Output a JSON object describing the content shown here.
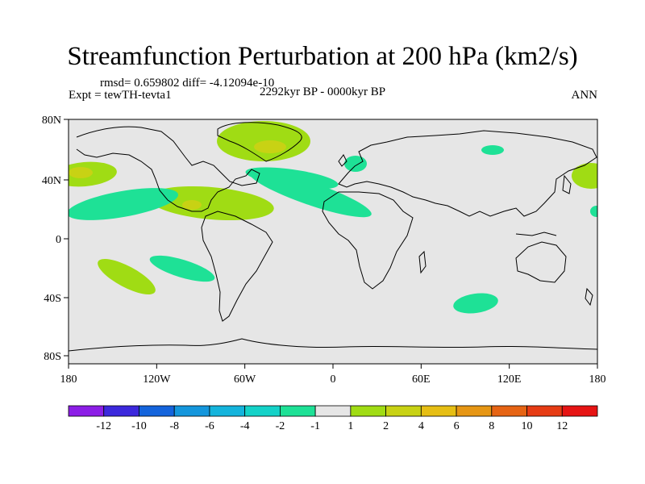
{
  "title": "Streamfunction Perturbation at 200 hPa (km2/s)",
  "rmsd_line": "rmsd= 0.659802 diff= -4.12094e-10",
  "experiment": "Expt = tewTH-tevta1",
  "period": "2292kyr BP - 0000kyr BP",
  "season": "ANN",
  "y_ticks": [
    "80N",
    "40N",
    "0",
    "40S",
    "80S"
  ],
  "x_ticks": [
    "180",
    "120W",
    "60W",
    "0",
    "60E",
    "120E",
    "180"
  ],
  "colorbar": {
    "colors": [
      "#8c1ee6",
      "#3c28dc",
      "#1464dc",
      "#1496dc",
      "#14b4dc",
      "#14d2c8",
      "#1ee196",
      "#e6e6e6",
      "#a0dc14",
      "#c8d214",
      "#e6be14",
      "#e69614",
      "#e66414",
      "#e63c14",
      "#e61414"
    ],
    "labels": [
      "-12",
      "-10",
      "-8",
      "-6",
      "-4",
      "-2",
      "-1",
      "1",
      "2",
      "4",
      "6",
      "8",
      "10",
      "12"
    ]
  },
  "map_colors": {
    "background": "#e6e6e6",
    "positive_1": "#a0dc14",
    "positive_2": "#c8d214",
    "negative_1": "#1ee196"
  }
}
